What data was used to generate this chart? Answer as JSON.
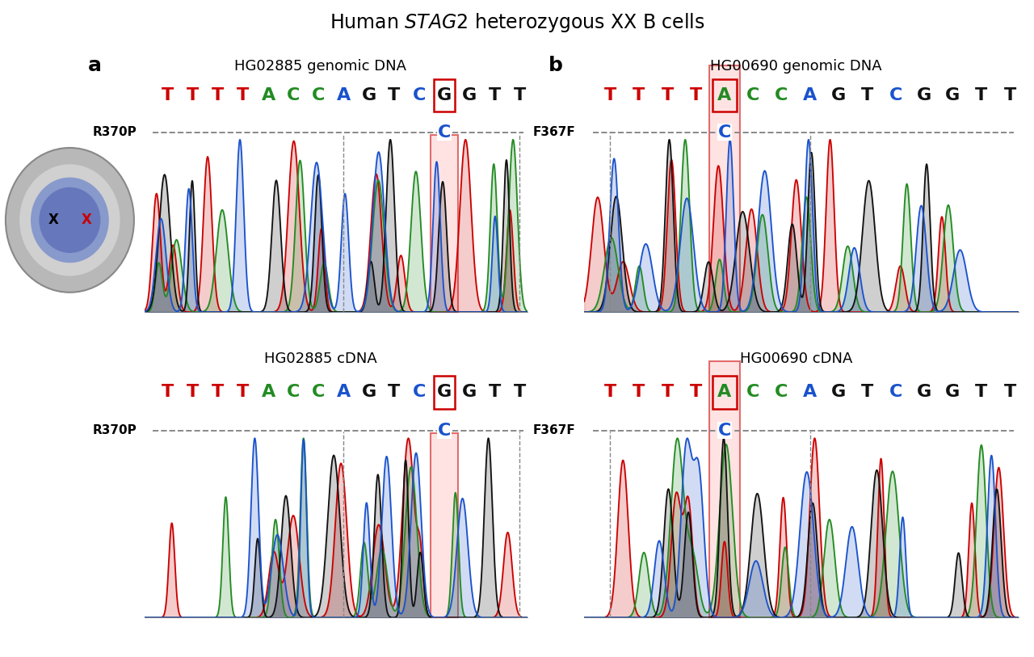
{
  "title": "Human $\\it{STAG2}$ heterozygous XX B cells",
  "panel_a_top_title": "HG02885 genomic DNA",
  "panel_a_bottom_title": "HG02885 cDNA",
  "panel_b_top_title": "HG00690 genomic DNA",
  "panel_b_bottom_title": "HG00690 cDNA",
  "label_a": "R370P",
  "label_b": "F367F",
  "sequence": "TTTTACCAGTCGGTT",
  "seq_colors": [
    "red",
    "red",
    "red",
    "red",
    "green",
    "green",
    "green",
    "blue",
    "black",
    "black",
    "blue",
    "black",
    "black",
    "black",
    "black"
  ],
  "highlight_a": 11,
  "highlight_b": 4,
  "bg_color": "#ffffff",
  "dash_color": "#888888",
  "red_box_color": "#cc0000",
  "col_red": "#cc0000",
  "col_blue": "#1a52cc",
  "col_green": "#228B22",
  "col_black": "#111111",
  "panel_label_fontsize": 18,
  "title_fontsize": 17,
  "seq_fontsize": 16,
  "axis_label_fontsize": 11,
  "subtitle_fontsize": 13
}
